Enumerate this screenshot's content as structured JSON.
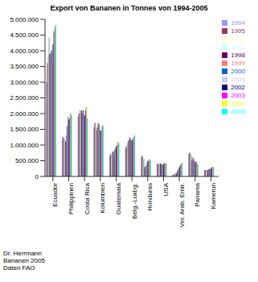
{
  "chart_data": {
    "type": "bar",
    "title": "Export von Bananen in Tonnes von 1994-2005",
    "annotations": [
      "Dr. Herrmann",
      "Bananen 2005",
      "Daten FAO"
    ],
    "categories": [
      "Ecuador",
      "Philippinen",
      "Costa Rica",
      "Kolumbien",
      "Guatemala",
      "Belg.-Luxbg.",
      "Honduras",
      "USA",
      "Ver. Arab. Emir.",
      "Panama",
      "Kamerun"
    ],
    "series": [
      {
        "name": "1994",
        "color": "#9999FF",
        "values": [
          3000000,
          1200000,
          1900000,
          1550000,
          650000,
          900000,
          600000,
          400000,
          50000,
          700000,
          200000
        ]
      },
      {
        "name": "1995",
        "color": "#993366",
        "values": [
          3600000,
          1250000,
          2000000,
          1700000,
          700000,
          950000,
          650000,
          380000,
          60000,
          750000,
          190000
        ]
      },
      {
        "name": "1996",
        "color": "#FFFFCC",
        "values": [
          3800000,
          1250000,
          2100000,
          1450000,
          690000,
          1050000,
          500000,
          390000,
          70000,
          720000,
          180000
        ]
      },
      {
        "name": "1997",
        "color": "#CCFFFF",
        "values": [
          4400000,
          1150000,
          2000000,
          1450000,
          800000,
          1100000,
          550000,
          400000,
          90000,
          650000,
          190000
        ]
      },
      {
        "name": "1998",
        "color": "#660066",
        "values": [
          3900000,
          1100000,
          2100000,
          1550000,
          780000,
          1150000,
          300000,
          410000,
          100000,
          500000,
          200000
        ]
      },
      {
        "name": "1999",
        "color": "#FF8080",
        "values": [
          3900000,
          1300000,
          2000000,
          1700000,
          650000,
          1250000,
          150000,
          380000,
          150000,
          600000,
          220000
        ]
      },
      {
        "name": "2000",
        "color": "#0066CC",
        "values": [
          4000000,
          1600000,
          2100000,
          1650000,
          850000,
          1200000,
          350000,
          370000,
          200000,
          550000,
          240000
        ]
      },
      {
        "name": "2001",
        "color": "#CCCCFF",
        "values": [
          3600000,
          1900000,
          1900000,
          1550000,
          900000,
          1100000,
          450000,
          380000,
          250000,
          450000,
          230000
        ]
      },
      {
        "name": "2002",
        "color": "#000080",
        "values": [
          4200000,
          1800000,
          1950000,
          1450000,
          950000,
          1150000,
          500000,
          390000,
          300000,
          450000,
          250000
        ]
      },
      {
        "name": "2003",
        "color": "#FF00FF",
        "values": [
          4600000,
          1850000,
          2100000,
          1450000,
          1000000,
          1200000,
          450000,
          420000,
          350000,
          470000,
          290000
        ]
      },
      {
        "name": "2004",
        "color": "#FFFF00",
        "values": [
          4700000,
          2000000,
          2200000,
          1600000,
          1100000,
          1250000,
          550000,
          410000,
          400000,
          400000,
          300000
        ]
      },
      {
        "name": "2005",
        "color": "#00FFFF",
        "values": [
          4800000,
          1950000,
          1850000,
          1600000,
          1050000,
          1300000,
          500000,
          400000,
          420000,
          380000,
          280000
        ]
      }
    ],
    "ylim": [
      0,
      5000000
    ],
    "yticks": [
      0,
      {
        "value": 500000,
        "label": "500.000"
      },
      {
        "value": 1000000,
        "label": "1.000.000"
      },
      {
        "value": 1500000,
        "label": "1.500.000"
      },
      {
        "value": 2000000,
        "label": "2.000.000"
      },
      {
        "value": 2500000,
        "label": "2.500.000"
      },
      {
        "value": 3000000,
        "label": "3.000.000"
      },
      {
        "value": 3500000,
        "label": "3.500.000"
      },
      {
        "value": 4000000,
        "label": "4.000.000"
      },
      {
        "value": 4500000,
        "label": "4.500.000"
      },
      {
        "value": 5000000,
        "label": "5.000.000"
      }
    ],
    "legend": "right",
    "grid": false
  }
}
